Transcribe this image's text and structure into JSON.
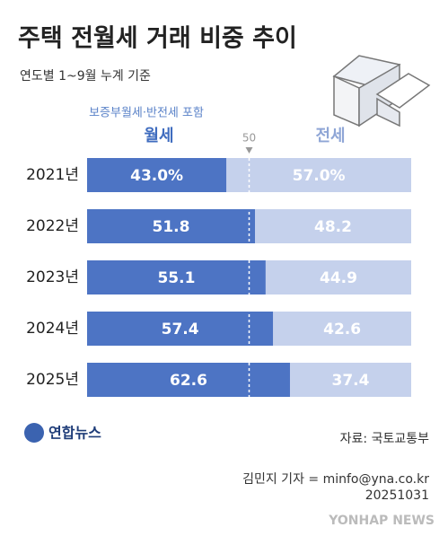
{
  "chart_data": {
    "type": "stacked_bar_h",
    "title": "주택 전월세 거래 비중 추이",
    "subtitle": "연도별 1~9월 누계 기준",
    "note": "보증부월세·반전세 포함",
    "categories": [
      "2021년",
      "2022년",
      "2023년",
      "2024년",
      "2025년"
    ],
    "series": [
      {
        "name": "월세",
        "color": "#4d74c4",
        "values": [
          43.0,
          51.8,
          55.1,
          57.4,
          62.6
        ],
        "value_labels": [
          "43.0%",
          "51.8",
          "55.1",
          "57.4",
          "62.6"
        ]
      },
      {
        "name": "전세",
        "color": "#c5d1ec",
        "values": [
          57.0,
          48.2,
          44.9,
          42.6,
          37.4
        ],
        "value_labels": [
          "57.0%",
          "48.2",
          "44.9",
          "42.6",
          "37.4"
        ]
      }
    ],
    "xlim": [
      0,
      100
    ],
    "xticks": [
      50
    ],
    "source": "자료: 국토교통부",
    "logo": "연합뉴스",
    "credit": "김민지 기자 = minfo@yna.co.kr",
    "date": "20251031",
    "watermark": "YONHAP NEWS"
  }
}
